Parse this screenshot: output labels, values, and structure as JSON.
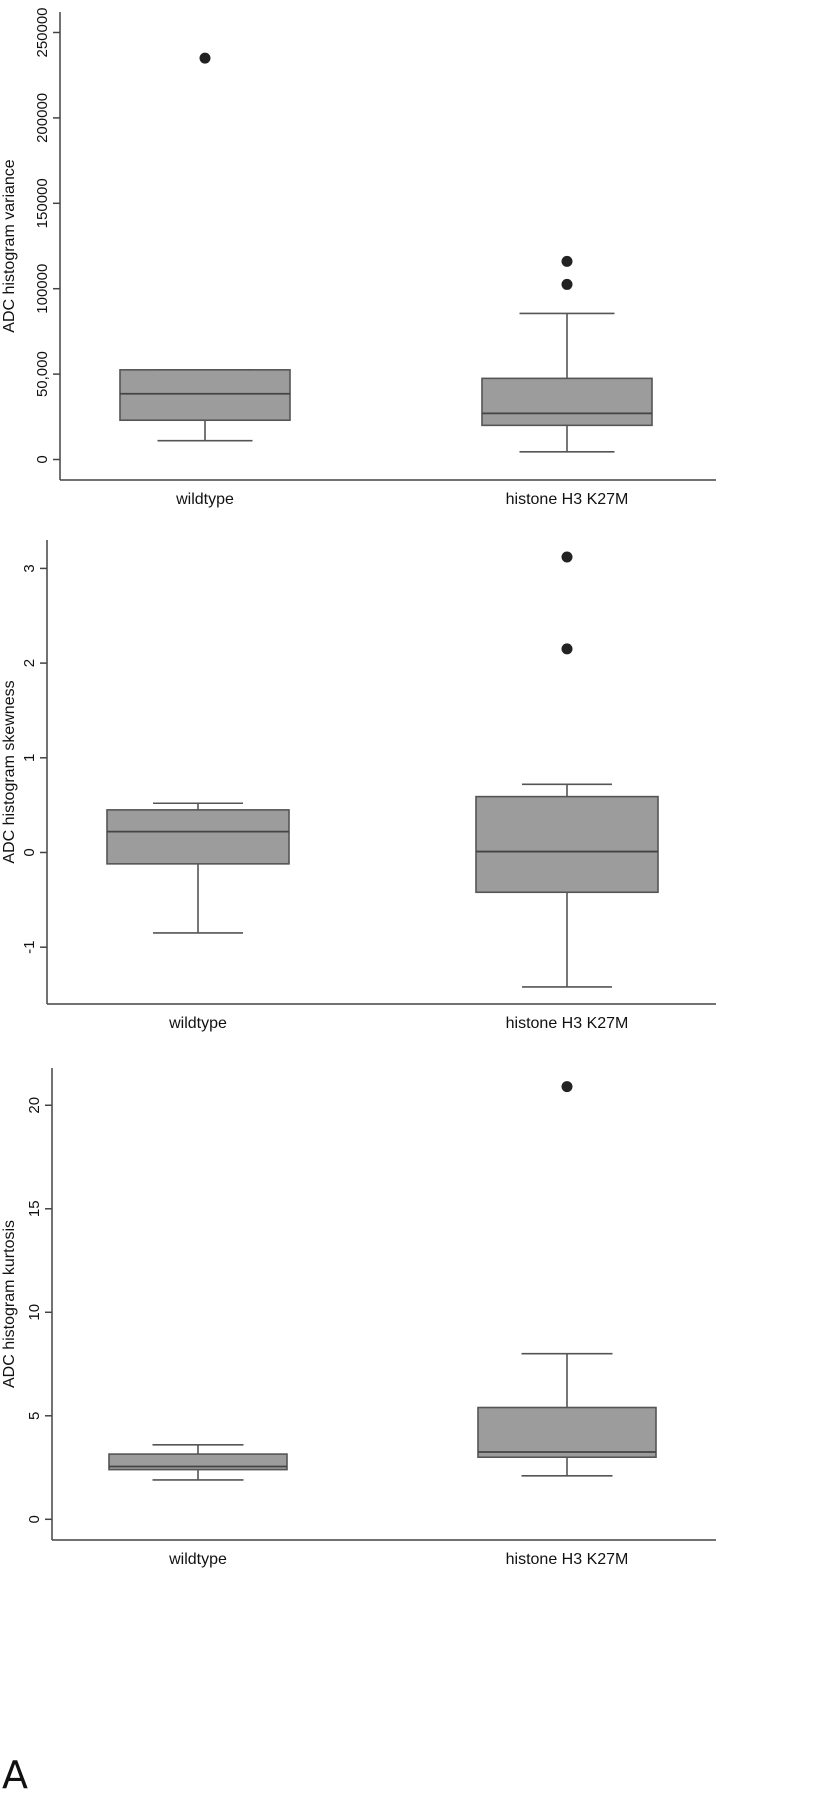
{
  "panel_label": "A",
  "chart_data": [
    {
      "type": "box",
      "ylabel": "ADC histogram variance",
      "categories": [
        "wildtype",
        "histone H3 K27M"
      ],
      "yticks": [
        0,
        50000,
        100000,
        150000,
        200000,
        250000
      ],
      "ytick_labels": [
        "0",
        "50,000",
        "100000",
        "150000",
        "200000",
        "250000"
      ],
      "ylim": [
        -12000,
        262000
      ],
      "boxes": [
        {
          "min": 11000,
          "q1": 23000,
          "median": 38500,
          "q3": 52500,
          "max": 52500,
          "outliers": [
            235000
          ]
        },
        {
          "min": 4500,
          "q1": 20000,
          "median": 27000,
          "q3": 47500,
          "max": 85500,
          "outliers": [
            102500,
            116000
          ]
        }
      ]
    },
    {
      "type": "box",
      "ylabel": "ADC histogram skewness",
      "categories": [
        "wildtype",
        "histone H3 K27M"
      ],
      "yticks": [
        -1,
        0,
        1,
        2,
        3
      ],
      "ytick_labels": [
        "-1",
        "0",
        "1",
        "2",
        "3"
      ],
      "ylim": [
        -1.6,
        3.3
      ],
      "boxes": [
        {
          "min": -0.85,
          "q1": -0.12,
          "median": 0.22,
          "q3": 0.45,
          "max": 0.52,
          "outliers": []
        },
        {
          "min": -1.42,
          "q1": -0.42,
          "median": 0.01,
          "q3": 0.59,
          "max": 0.72,
          "outliers": [
            2.15,
            3.12
          ]
        }
      ]
    },
    {
      "type": "box",
      "ylabel": "ADC histogram kurtosis",
      "categories": [
        "wildtype",
        "histone H3 K27M"
      ],
      "yticks": [
        0,
        5,
        10,
        15,
        20
      ],
      "ytick_labels": [
        "0",
        "5",
        "10",
        "15",
        "20"
      ],
      "ylim": [
        -1,
        21.8
      ],
      "boxes": [
        {
          "min": 1.9,
          "q1": 2.4,
          "median": 2.55,
          "q3": 3.15,
          "max": 3.6,
          "outliers": []
        },
        {
          "min": 2.1,
          "q1": 3.0,
          "median": 3.25,
          "q3": 5.4,
          "max": 8.0,
          "outliers": [
            20.9
          ]
        }
      ]
    }
  ]
}
